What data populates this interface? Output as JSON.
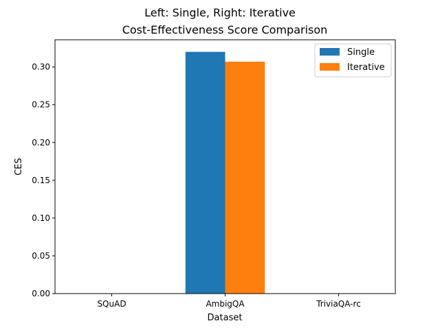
{
  "figure": {
    "suptitle": "Left: Single, Right: Iterative"
  },
  "chart_data": {
    "type": "bar",
    "title": "Cost-Effectiveness Score Comparison",
    "xlabel": "Dataset",
    "ylabel": "CES",
    "categories": [
      "SQuAD",
      "AmbigQA",
      "TriviaQA-rc"
    ],
    "series": [
      {
        "name": "Single",
        "color": "#1f77b4",
        "values": [
          0,
          0.32,
          0
        ]
      },
      {
        "name": "Iterative",
        "color": "#ff7f0e",
        "values": [
          0,
          0.307,
          0
        ]
      }
    ],
    "ylim": [
      0,
      0.336
    ],
    "yticks": [
      "0.00",
      "0.05",
      "0.10",
      "0.15",
      "0.20",
      "0.25",
      "0.30"
    ],
    "legend": "top-right",
    "grid": false
  }
}
